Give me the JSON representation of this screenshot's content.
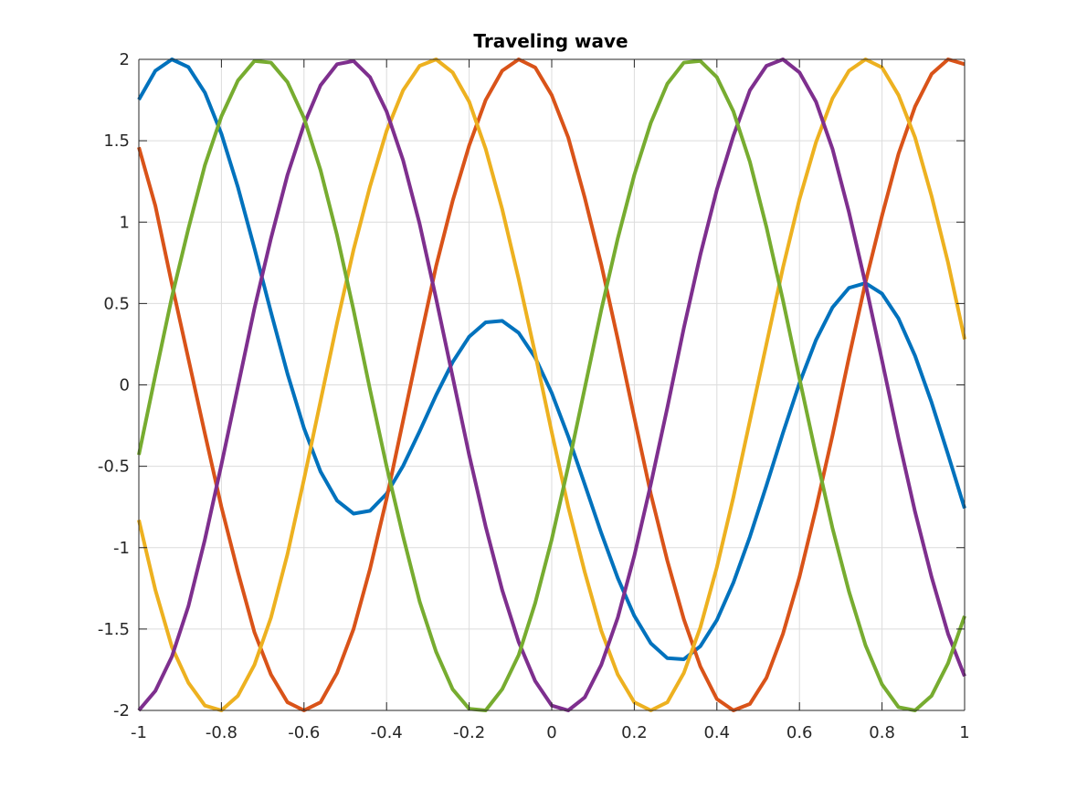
{
  "chart_data": {
    "type": "line",
    "title": "Traveling wave",
    "xlabel": "",
    "ylabel": "",
    "xlim": [
      -1,
      1
    ],
    "ylim": [
      -2,
      2
    ],
    "grid": true,
    "legend": "none",
    "xticks": [
      "-1",
      "-0.8",
      "-0.6",
      "-0.4",
      "-0.2",
      "0",
      "0.2",
      "0.4",
      "0.6",
      "0.8",
      "1"
    ],
    "yticks": [
      "2",
      "1.5",
      "1",
      "0.5",
      "0",
      "-0.5",
      "-1",
      "-1.5",
      "-2"
    ],
    "x": [
      -1.0,
      -0.96,
      -0.92,
      -0.88,
      -0.84,
      -0.8,
      -0.76,
      -0.72,
      -0.68,
      -0.64,
      -0.6,
      -0.56,
      -0.52,
      -0.48,
      -0.44,
      -0.4,
      -0.36,
      -0.32,
      -0.28,
      -0.24,
      -0.2,
      -0.16,
      -0.12,
      -0.08,
      -0.04,
      0.0,
      0.04,
      0.08,
      0.12,
      0.16,
      0.2,
      0.24,
      0.28,
      0.32,
      0.36,
      0.4,
      0.44,
      0.48,
      0.52,
      0.56,
      0.6,
      0.64,
      0.68,
      0.72,
      0.76,
      0.8,
      0.84,
      0.88,
      0.92,
      0.96,
      1.0
    ],
    "series": [
      {
        "color": "#0072BD",
        "values": [
          1.7526,
          1.9297,
          2.0,
          1.9528,
          1.7956,
          1.5422,
          1.2141,
          0.8388,
          0.4466,
          0.0687,
          -0.2661,
          -0.5323,
          -0.7106,
          -0.7909,
          -0.7735,
          -0.6691,
          -0.4977,
          -0.2856,
          -0.0628,
          0.1399,
          0.2958,
          0.3845,
          0.3936,
          0.3195,
          0.1675,
          -0.0494,
          -0.3164,
          -0.6115,
          -0.9101,
          -1.1868,
          -1.4188,
          -1.5876,
          -1.6791,
          -1.6856,
          -1.6058,
          -1.445,
          -1.2152,
          -0.9329,
          -0.6186,
          -0.2956,
          0.0106,
          0.2751,
          0.4758,
          0.596,
          0.6251,
          0.5605,
          0.4074,
          0.1783,
          -0.1079,
          -0.4286,
          -0.7584
        ]
      },
      {
        "color": "#D95319",
        "values": [
          1.46,
          1.1,
          0.62,
          0.16,
          -0.3,
          -0.75,
          -1.15,
          -1.52,
          -1.78,
          -1.95,
          -2.0,
          -1.95,
          -1.77,
          -1.5,
          -1.13,
          -0.7,
          -0.22,
          0.26,
          0.73,
          1.13,
          1.47,
          1.75,
          1.93,
          2.0,
          1.95,
          1.78,
          1.52,
          1.15,
          0.74,
          0.28,
          -0.2,
          -0.67,
          -1.08,
          -1.44,
          -1.73,
          -1.93,
          -2.0,
          -1.96,
          -1.8,
          -1.53,
          -1.18,
          -0.76,
          -0.31,
          0.17,
          0.63,
          1.04,
          1.42,
          1.71,
          1.91,
          2.0,
          1.97
        ]
      },
      {
        "color": "#EDB120",
        "values": [
          -0.83,
          -1.26,
          -1.61,
          -1.83,
          -1.97,
          -2.0,
          -1.91,
          -1.72,
          -1.43,
          -1.04,
          -0.58,
          -0.1,
          0.38,
          0.83,
          1.22,
          1.56,
          1.81,
          1.96,
          2.0,
          1.92,
          1.74,
          1.45,
          1.08,
          0.65,
          0.19,
          -0.29,
          -0.75,
          -1.15,
          -1.51,
          -1.78,
          -1.95,
          -2.0,
          -1.95,
          -1.77,
          -1.49,
          -1.12,
          -0.69,
          -0.22,
          0.25,
          0.72,
          1.14,
          1.49,
          1.76,
          1.93,
          2.0,
          1.95,
          1.78,
          1.52,
          1.16,
          0.75,
          0.28
        ]
      },
      {
        "color": "#7E2F8E",
        "values": [
          -2.0,
          -1.88,
          -1.67,
          -1.36,
          -0.95,
          -0.49,
          -0.01,
          0.47,
          0.9,
          1.29,
          1.6,
          1.84,
          1.97,
          1.99,
          1.89,
          1.68,
          1.38,
          0.99,
          0.53,
          0.05,
          -0.43,
          -0.87,
          -1.26,
          -1.58,
          -1.82,
          -1.97,
          -2.0,
          -1.92,
          -1.72,
          -1.43,
          -1.05,
          -0.61,
          -0.14,
          0.35,
          0.8,
          1.2,
          1.53,
          1.81,
          1.96,
          2.0,
          1.92,
          1.74,
          1.45,
          1.06,
          0.62,
          0.15,
          -0.33,
          -0.78,
          -1.18,
          -1.53,
          -1.79
        ]
      },
      {
        "color": "#77AC30",
        "values": [
          -0.43,
          0.06,
          0.54,
          0.96,
          1.35,
          1.65,
          1.87,
          1.99,
          1.98,
          1.86,
          1.64,
          1.32,
          0.92,
          0.46,
          -0.03,
          -0.5,
          -0.93,
          -1.33,
          -1.64,
          -1.87,
          -1.99,
          -2.0,
          -1.87,
          -1.66,
          -1.34,
          -0.95,
          -0.5,
          -0.02,
          0.46,
          0.9,
          1.29,
          1.61,
          1.85,
          1.98,
          1.99,
          1.89,
          1.68,
          1.37,
          0.97,
          0.52,
          0.04,
          -0.43,
          -0.88,
          -1.27,
          -1.6,
          -1.84,
          -1.98,
          -2.0,
          -1.91,
          -1.71,
          -1.42
        ]
      }
    ]
  }
}
